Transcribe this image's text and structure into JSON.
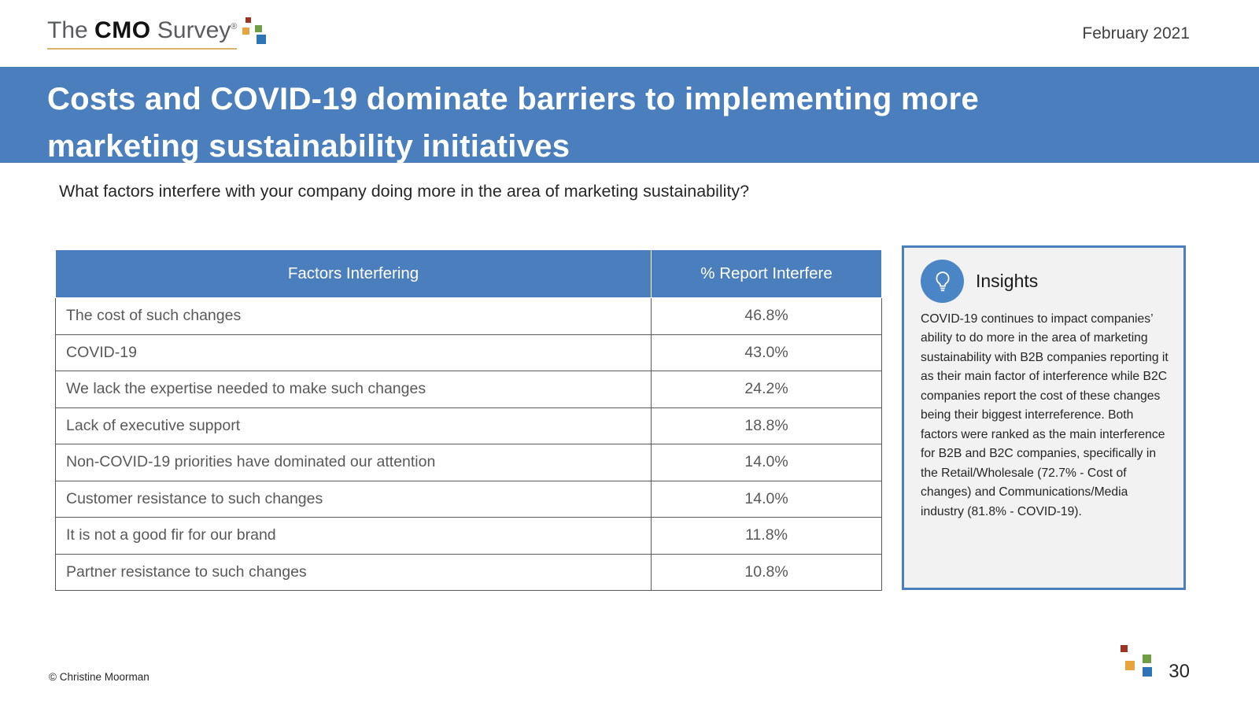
{
  "header": {
    "logo_the": "The",
    "logo_cmo": "CMO",
    "logo_survey": "Survey",
    "logo_reg": "®",
    "date": "February 2021"
  },
  "banner": {
    "title": "Costs and COVID-19 dominate barriers to implementing more marketing sustainability initiatives"
  },
  "question": "What factors interfere with your company doing more in the area of marketing sustainability?",
  "chart_data": {
    "type": "table",
    "columns": [
      "Factors Interfering",
      "% Report Interfere"
    ],
    "rows": [
      {
        "factor": "The cost of such changes",
        "percent": "46.8%",
        "value": 46.8
      },
      {
        "factor": "COVID-19",
        "percent": "43.0%",
        "value": 43.0
      },
      {
        "factor": "We lack the expertise needed to make such changes",
        "percent": "24.2%",
        "value": 24.2
      },
      {
        "factor": "Lack of executive support",
        "percent": "18.8%",
        "value": 18.8
      },
      {
        "factor": "Non-COVID-19 priorities have dominated our attention",
        "percent": "14.0%",
        "value": 14.0
      },
      {
        "factor": "Customer resistance to such changes",
        "percent": "14.0%",
        "value": 14.0
      },
      {
        "factor": "It is not a good fir for our brand",
        "percent": "11.8%",
        "value": 11.8
      },
      {
        "factor": "Partner resistance to such changes",
        "percent": "10.8%",
        "value": 10.8
      }
    ]
  },
  "insights": {
    "title": "Insights",
    "icon": "lightbulb-icon",
    "body": "COVID-19 continues to impact companies’ ability to do more in the area of  marketing sustainability with B2B companies reporting it as their main factor of interference while B2C companies report the cost of these changes being their biggest interreference. Both factors were ranked as the main interference for B2B and B2C companies, specifically in the Retail/Wholesale (72.7% - Cost of changes) and Communications/Media industry (81.8% - COVID-19)."
  },
  "footer": {
    "copyright": "© Christine Moorman",
    "page": "30"
  },
  "colors": {
    "banner_blue": "#4a7ebc",
    "table_header_blue": "#4a7ebc",
    "insights_border": "#4a7ebc",
    "insights_bg": "#f2f2f3",
    "body_text": "#595959"
  }
}
